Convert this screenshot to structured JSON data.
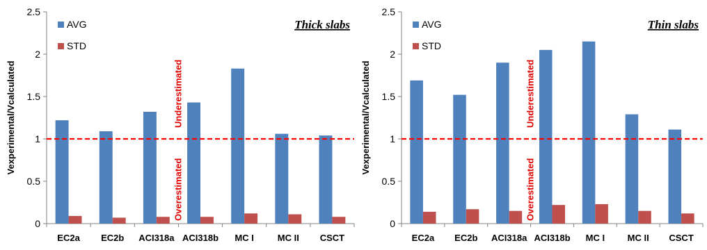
{
  "chart_data": [
    {
      "type": "bar",
      "title": "Thick slabs",
      "ylabel": "Vexperimental/Vcalculated",
      "ylim": [
        0,
        2.5
      ],
      "yticks": [
        "0",
        "0.5",
        "1",
        "1.5",
        "2",
        "2.5"
      ],
      "categories": [
        "EC2a",
        "EC2b",
        "ACI318a",
        "ACI318b",
        "MC I",
        "MC II",
        "CSCT"
      ],
      "series": [
        {
          "name": "AVG",
          "color": "#4f81bd",
          "values": [
            1.22,
            1.09,
            1.32,
            1.43,
            1.83,
            1.06,
            1.04
          ]
        },
        {
          "name": "STD",
          "color": "#c0504d",
          "values": [
            0.09,
            0.07,
            0.08,
            0.08,
            0.12,
            0.11,
            0.08
          ]
        }
      ],
      "reference_line": {
        "y": 1,
        "color": "#ff0000"
      },
      "annotations": {
        "above": "Underestimated",
        "below": "Overestimated"
      },
      "grid": false,
      "legend": "top-left"
    },
    {
      "type": "bar",
      "title": "Thin slabs",
      "ylabel": "Vexperimental/Vcalculated",
      "ylim": [
        0,
        2.5
      ],
      "yticks": [
        "0",
        "0.5",
        "1",
        "1.5",
        "2",
        "2.5"
      ],
      "categories": [
        "EC2a",
        "EC2b",
        "ACI318a",
        "ACI318b",
        "MC I",
        "MC II",
        "CSCT"
      ],
      "series": [
        {
          "name": "AVG",
          "color": "#4f81bd",
          "values": [
            1.69,
            1.52,
            1.9,
            2.05,
            2.15,
            1.29,
            1.11
          ]
        },
        {
          "name": "STD",
          "color": "#c0504d",
          "values": [
            0.14,
            0.17,
            0.15,
            0.22,
            0.23,
            0.15,
            0.12
          ]
        }
      ],
      "reference_line": {
        "y": 1,
        "color": "#ff0000"
      },
      "annotations": {
        "above": "Underestimated",
        "below": "Overestimated"
      },
      "grid": false,
      "legend": "top-left"
    }
  ]
}
